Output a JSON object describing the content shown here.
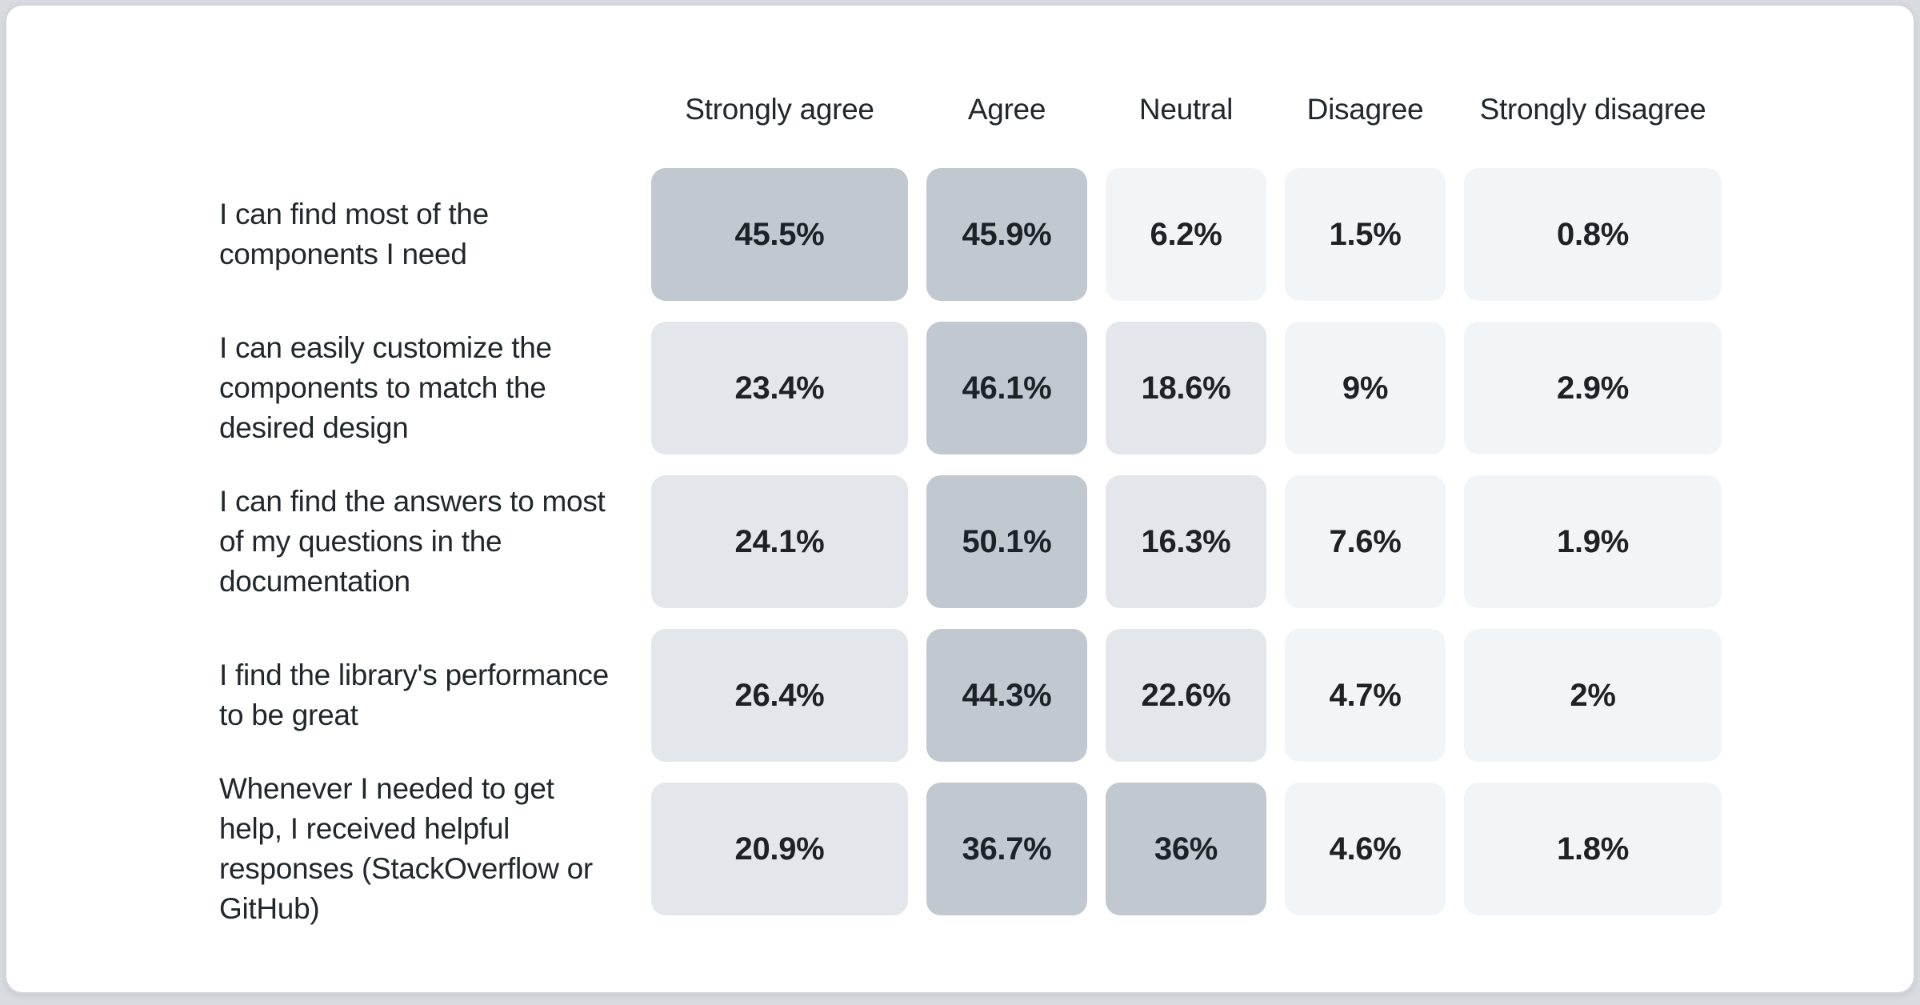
{
  "page": {
    "background_color": "#d8dce0",
    "card_color": "#ffffff",
    "card_border_color": "#d2d6db",
    "text_color": "#21272a",
    "value_text_color": "#1d2227"
  },
  "chart_data": {
    "type": "heatmap",
    "title": "",
    "legend_position": "none",
    "grid": false,
    "columns": [
      "Strongly agree",
      "Agree",
      "Neutral",
      "Disagree",
      "Strongly disagree"
    ],
    "column_slugs": [
      "strongly-agree",
      "agree",
      "neutral",
      "disagree",
      "strongly-disagree"
    ],
    "rows": [
      {
        "label": "I can find most of the components I need",
        "values": [
          45.5,
          45.9,
          6.2,
          1.5,
          0.8
        ],
        "display": [
          "45.5%",
          "45.9%",
          "6.2%",
          "1.5%",
          "0.8%"
        ]
      },
      {
        "label": "I can easily customize the components to match the desired design",
        "values": [
          23.4,
          46.1,
          18.6,
          9,
          2.9
        ],
        "display": [
          "23.4%",
          "46.1%",
          "18.6%",
          "9%",
          "2.9%"
        ]
      },
      {
        "label": "I can find the answers to most of my questions in the documentation",
        "values": [
          24.1,
          50.1,
          16.3,
          7.6,
          1.9
        ],
        "display": [
          "24.1%",
          "50.1%",
          "16.3%",
          "7.6%",
          "1.9%"
        ]
      },
      {
        "label": "I find the library's performance to be great",
        "values": [
          26.4,
          44.3,
          22.6,
          4.7,
          2
        ],
        "display": [
          "26.4%",
          "44.3%",
          "22.6%",
          "4.7%",
          "2%"
        ]
      },
      {
        "label": "Whenever I needed to get help, I received helpful responses (StackOverflow or GitHub)",
        "values": [
          20.9,
          36.7,
          36,
          4.6,
          1.8
        ],
        "display": [
          "20.9%",
          "36.7%",
          "36%",
          "4.6%",
          "1.8%"
        ]
      }
    ],
    "cell_colors": [
      [
        "#c2c8d0",
        "#c2c8d0",
        "#f2f5f8",
        "#f2f5f8",
        "#f2f5f8"
      ],
      [
        "#e3e7eb",
        "#c2c8d0",
        "#e3e7eb",
        "#f2f5f8",
        "#f2f5f8"
      ],
      [
        "#e3e7eb",
        "#c2c8d0",
        "#e3e7eb",
        "#f2f5f8",
        "#f2f5f8"
      ],
      [
        "#e3e7eb",
        "#c2c8d0",
        "#e3e7eb",
        "#f2f5f8",
        "#f2f5f8"
      ],
      [
        "#e3e7eb",
        "#c2c8d0",
        "#c2c8d0",
        "#f2f5f8",
        "#f2f5f8"
      ]
    ],
    "color_scale": {
      "high": "#c2c8d0",
      "mid": "#e3e7eb",
      "low": "#f2f5f8"
    }
  }
}
